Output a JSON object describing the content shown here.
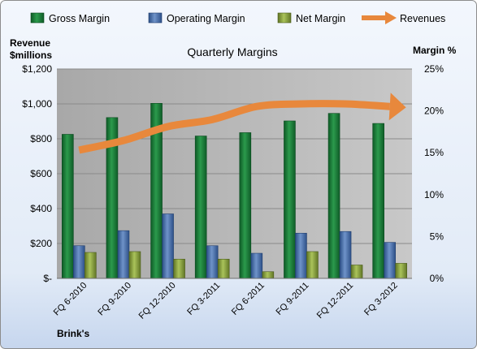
{
  "chart_data": {
    "type": "bar",
    "title": "Quarterly Margins",
    "footer": "Brink's",
    "ylabel_left_line1": "Revenue",
    "ylabel_left_line2": "$millions",
    "ylabel_right": "Margin %",
    "categories": [
      "FQ 6-2010",
      "FQ 9-2010",
      "FQ 12-2010",
      "FQ 3-2011",
      "FQ 6-2011",
      "FQ 9-2011",
      "FQ 12-2011",
      "FQ 3-2012"
    ],
    "left_axis": {
      "min": 0,
      "max": 1200,
      "ticks": [
        0,
        200,
        400,
        600,
        800,
        1000,
        1200
      ],
      "tick_labels": [
        "$-",
        "$200",
        "$400",
        "$600",
        "$800",
        "$1,000",
        "$1,200"
      ]
    },
    "right_axis": {
      "min": 0,
      "max": 25,
      "ticks": [
        0,
        5,
        10,
        15,
        20,
        25
      ],
      "tick_labels": [
        "0%",
        "5%",
        "10%",
        "15%",
        "20%",
        "25%"
      ]
    },
    "series": [
      {
        "name": "Gross Margin",
        "type": "bar",
        "axis": "right",
        "color": "#1e7a3a",
        "values": [
          17.2,
          19.2,
          20.9,
          17.0,
          17.4,
          18.8,
          19.7,
          18.5
        ]
      },
      {
        "name": "Operating Margin",
        "type": "bar",
        "axis": "right",
        "color": "#4a6fa8",
        "values": [
          3.9,
          5.7,
          7.7,
          3.9,
          3.0,
          5.4,
          5.6,
          4.3
        ]
      },
      {
        "name": "Net Margin",
        "type": "bar",
        "axis": "right",
        "color": "#8fa641",
        "values": [
          3.1,
          3.2,
          2.3,
          2.3,
          0.8,
          3.2,
          1.6,
          1.8
        ]
      },
      {
        "name": "Revenues",
        "type": "line",
        "axis": "left",
        "color": "#e8883c",
        "values": [
          735,
          790,
          870,
          910,
          985,
          1000,
          1000,
          985
        ]
      }
    ],
    "legend_position": "top",
    "grid": true
  }
}
